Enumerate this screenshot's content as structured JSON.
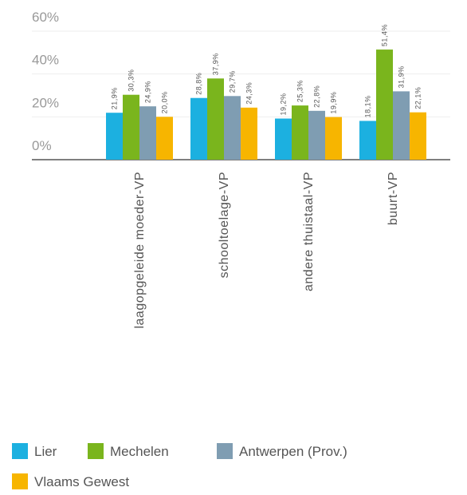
{
  "chart_data": {
    "type": "bar",
    "categories": [
      "laagopgeleide moeder-VP",
      "schooltoelage-VP",
      "andere thuistaal-VP",
      "buurt-VP"
    ],
    "series": [
      {
        "name": "Lier",
        "color": "#1cb0e0",
        "values": [
          21.9,
          28.8,
          19.2,
          18.1
        ],
        "value_labels": [
          "21,9%",
          "28,8%",
          "19,2%",
          "18,1%"
        ]
      },
      {
        "name": "Mechelen",
        "color": "#7ab51d",
        "values": [
          30.3,
          37.9,
          25.3,
          51.4
        ],
        "value_labels": [
          "30,3%",
          "37,9%",
          "25,3%",
          "51,4%"
        ]
      },
      {
        "name": "Antwerpen (Prov.)",
        "color": "#7f9db2",
        "values": [
          24.9,
          29.7,
          22.8,
          31.9
        ],
        "value_labels": [
          "24,9%",
          "29,7%",
          "22,8%",
          "31,9%"
        ]
      },
      {
        "name": "Vlaams Gewest",
        "color": "#f7b500",
        "values": [
          20.0,
          24.3,
          19.9,
          22.1
        ],
        "value_labels": [
          "20,0%",
          "24,3%",
          "19,9%",
          "22,1%"
        ]
      }
    ],
    "ylim": [
      0,
      60
    ],
    "yticks": [
      {
        "value": 0,
        "label": "0%"
      },
      {
        "value": 20,
        "label": "20%"
      },
      {
        "value": 40,
        "label": "40%"
      },
      {
        "value": 60,
        "label": "60%"
      }
    ],
    "grid": true
  }
}
